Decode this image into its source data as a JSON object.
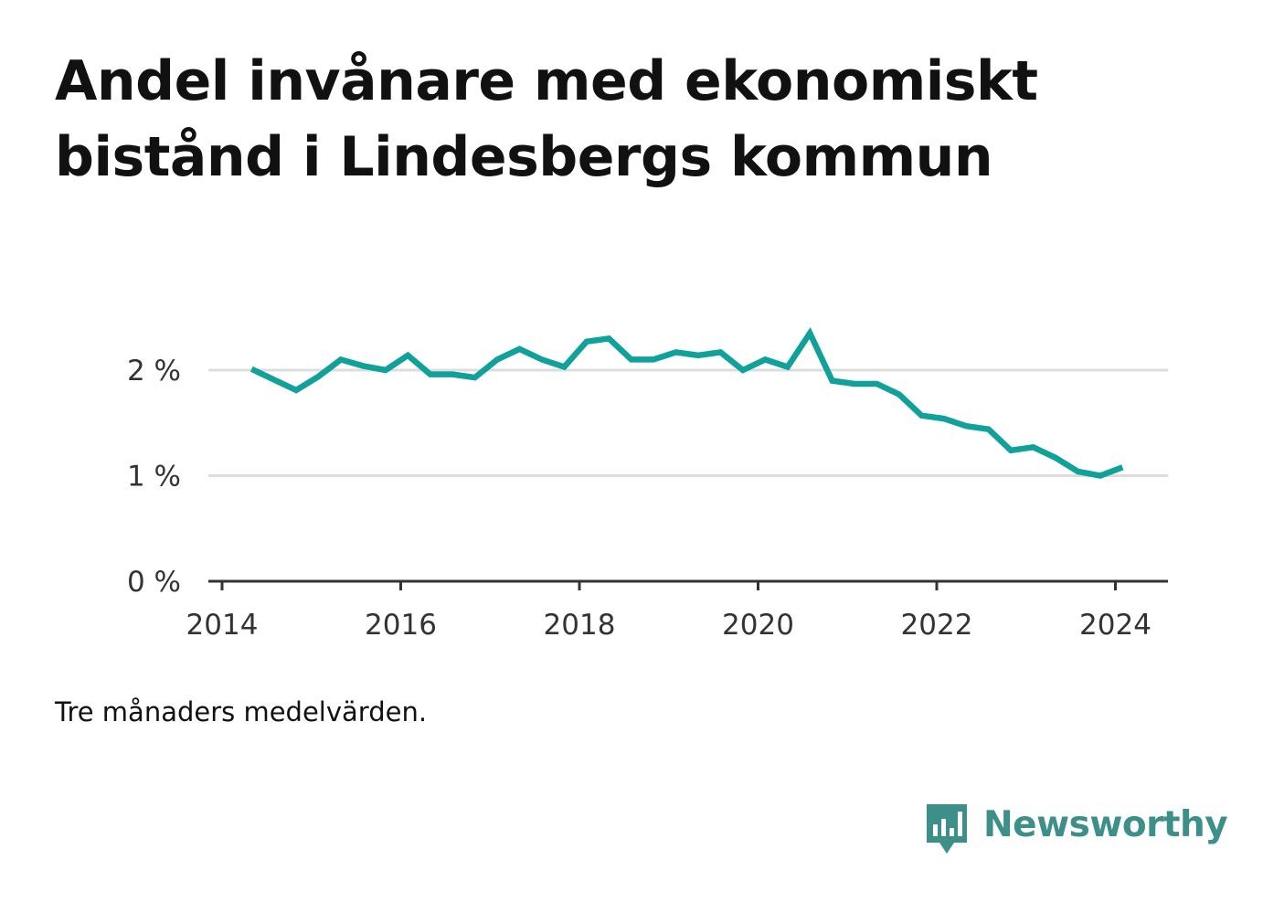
{
  "title": "Andel invånare med ekonomiskt bistånd i Lindesbergs kommun",
  "note": "Tre månaders medelvärden.",
  "brand": {
    "name": "Newsworthy",
    "icon": "newsworthy-logo-icon",
    "color": "#3d8f8a"
  },
  "chart_data": {
    "type": "line",
    "title": "Andel invånare med ekonomiskt bistånd i Lindesbergs kommun",
    "xlabel": "",
    "ylabel": "",
    "x_ticks": [
      "2014",
      "2016",
      "2018",
      "2020",
      "2022",
      "2024"
    ],
    "y_ticks": [
      "0 %",
      "1 %",
      "2 %"
    ],
    "xlim": [
      2014,
      2024.6
    ],
    "ylim": [
      0,
      2.6
    ],
    "grid": true,
    "line_color": "#0fa19a",
    "series": [
      {
        "name": "",
        "x": [
          2014.33,
          2014.58,
          2014.83,
          2015.08,
          2015.33,
          2015.58,
          2015.83,
          2016.08,
          2016.33,
          2016.58,
          2016.83,
          2017.08,
          2017.33,
          2017.58,
          2017.83,
          2018.08,
          2018.33,
          2018.58,
          2018.83,
          2019.08,
          2019.33,
          2019.58,
          2019.83,
          2020.08,
          2020.33,
          2020.58,
          2020.83,
          2021.08,
          2021.33,
          2021.58,
          2021.83,
          2022.08,
          2022.33,
          2022.58,
          2022.83,
          2023.08,
          2023.33,
          2023.58,
          2023.83,
          2024.08
        ],
        "values": [
          2.01,
          1.91,
          1.81,
          1.94,
          2.1,
          2.04,
          2.0,
          2.14,
          1.96,
          1.96,
          1.93,
          2.1,
          2.2,
          2.1,
          2.03,
          2.27,
          2.3,
          2.1,
          2.1,
          2.17,
          2.14,
          2.17,
          2.0,
          2.1,
          2.03,
          2.35,
          1.9,
          1.87,
          1.87,
          1.77,
          1.57,
          1.54,
          1.47,
          1.44,
          1.24,
          1.27,
          1.17,
          1.04,
          1.0,
          1.08
        ]
      }
    ]
  }
}
